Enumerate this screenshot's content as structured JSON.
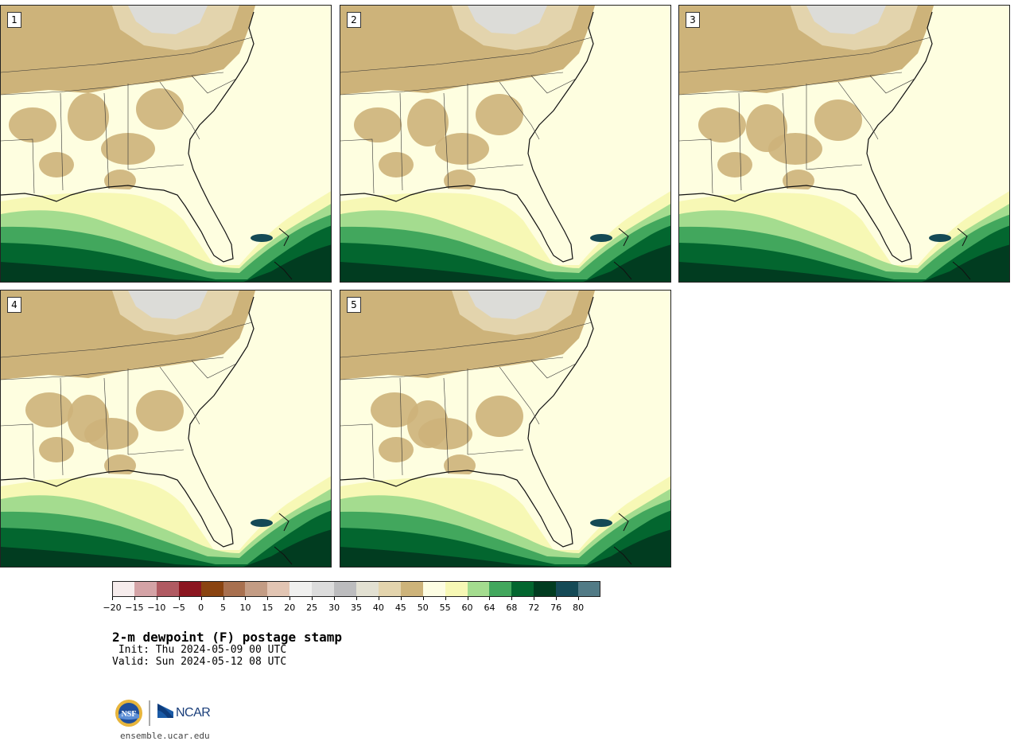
{
  "panels": [
    {
      "label": "1"
    },
    {
      "label": "2"
    },
    {
      "label": "3"
    },
    {
      "label": "4"
    },
    {
      "label": "5"
    }
  ],
  "colorbar": {
    "colors": [
      "#f6ecec",
      "#d4a3a6",
      "#b05a62",
      "#8b1620",
      "#8a4411",
      "#a8704f",
      "#c39c84",
      "#e2c5b3",
      "#f0f0ef",
      "#dcdcdc",
      "#bcbcbe",
      "#e2e0d2",
      "#e3d4ad",
      "#cdb37a",
      "#fdfde3",
      "#f7f8b5",
      "#a4dc8f",
      "#42a75d",
      "#03662f",
      "#013c20",
      "#154a56",
      "#527b86"
    ],
    "tick_labels": [
      "−20",
      "−15",
      "−10",
      "−5",
      "0",
      "5",
      "10",
      "15",
      "20",
      "25",
      "30",
      "35",
      "40",
      "45",
      "50",
      "55",
      "60",
      "64",
      "68",
      "72",
      "76",
      "80"
    ]
  },
  "map_colors": {
    "land_warm": "#fefee0",
    "land_dry": "#cdb37a",
    "land_tan": "#e3d4ad",
    "land_gray": "#dcdcd8",
    "sea_60": "#f7f8b5",
    "sea_64": "#a4dc8f",
    "sea_68": "#42a75d",
    "sea_72": "#03662f",
    "sea_76": "#013c20",
    "sea_80": "#154a56"
  },
  "title": "2-m dewpoint (F) postage stamp",
  "init": " Init: Thu 2024-05-09 00 UTC",
  "valid": "Valid: Sun 2024-05-12 08 UTC",
  "logo_text": "NCAR",
  "website": "ensemble.ucar.edu"
}
